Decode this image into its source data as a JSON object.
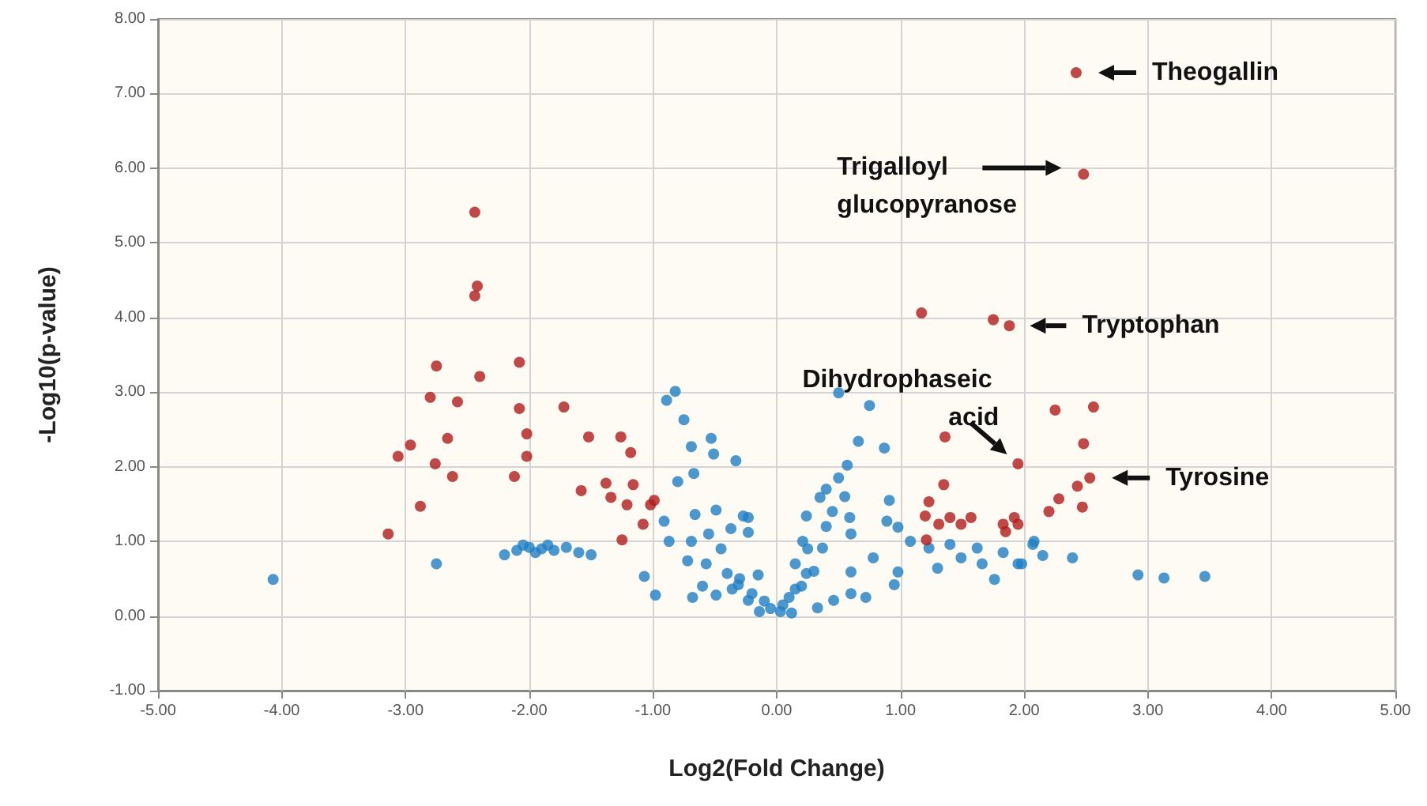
{
  "chart_data": {
    "type": "scatter",
    "xlabel": "Log2(Fold Change)",
    "ylabel": "-Log10(p-value)",
    "marker": "circle",
    "grid": true,
    "xlim": [
      -5,
      5
    ],
    "ylim": [
      -1,
      8
    ],
    "xticks": [
      {
        "value": -5,
        "label": "-5.00"
      },
      {
        "value": -4,
        "label": "-4.00"
      },
      {
        "value": -3,
        "label": "-3.00"
      },
      {
        "value": -2,
        "label": "-2.00"
      },
      {
        "value": -1,
        "label": "-1.00"
      },
      {
        "value": 0,
        "label": "0.00"
      },
      {
        "value": 1,
        "label": "1.00"
      },
      {
        "value": 2,
        "label": "2.00"
      },
      {
        "value": 3,
        "label": "3.00"
      },
      {
        "value": 4,
        "label": "4.00"
      },
      {
        "value": 5,
        "label": "5.00"
      }
    ],
    "yticks": [
      {
        "value": -1,
        "label": "-1.00"
      },
      {
        "value": 0,
        "label": "0.00"
      },
      {
        "value": 1,
        "label": "1.00"
      },
      {
        "value": 2,
        "label": "2.00"
      },
      {
        "value": 3,
        "label": "3.00"
      },
      {
        "value": 4,
        "label": "4.00"
      },
      {
        "value": 5,
        "label": "5.00"
      },
      {
        "value": 6,
        "label": "6.00"
      },
      {
        "value": 7,
        "label": "7.00"
      },
      {
        "value": 8,
        "label": "8.00"
      }
    ],
    "series": [
      {
        "color": "#1f7fc4",
        "x": [
          -4.07,
          -2.75,
          -0.82,
          -0.89,
          -0.75,
          -0.53,
          -0.69,
          -0.51,
          -0.33,
          -0.67,
          -0.66,
          -0.49,
          -0.23,
          -0.37,
          -0.91,
          -0.87,
          -0.69,
          -0.72,
          -0.57,
          -1.07,
          -0.98,
          -0.68,
          -0.49,
          -0.31,
          -0.23,
          -0.4,
          0.5,
          0.75,
          0.66,
          0.87,
          0.57,
          0.5,
          0.4,
          0.35,
          0.91,
          0.24,
          0.59,
          0.89,
          0.98,
          0.6,
          0.21,
          0.37,
          1.08,
          0.78,
          0.6,
          0.98,
          0.95,
          0.24,
          0.15,
          0.03,
          0.46,
          0.72,
          -0.36,
          -0.14,
          0.12,
          0.33,
          -0.23,
          -0.27,
          1.23,
          1.3,
          1.4,
          1.49,
          1.62,
          1.66,
          1.76,
          1.83,
          1.95,
          2.07,
          2.08,
          2.15,
          1.98,
          2.39,
          2.92,
          3.13,
          3.46,
          -0.05,
          0.05,
          -0.1,
          0.1,
          -0.2,
          0.2,
          0.3,
          -0.3,
          0.15,
          0.25,
          -0.15,
          0.4,
          0.45,
          -0.45,
          -0.55,
          0.55,
          -0.8,
          -0.6,
          0.6,
          -2.2,
          -2.1,
          -2.0,
          -1.95,
          -1.9,
          -1.85,
          -1.8,
          -1.7,
          -1.6,
          -1.5,
          -2.05
        ],
        "values": [
          0.49,
          0.7,
          3.01,
          2.89,
          2.63,
          2.38,
          2.27,
          2.17,
          2.08,
          1.91,
          1.36,
          1.42,
          1.32,
          1.17,
          1.27,
          1.0,
          1.0,
          0.74,
          0.7,
          0.53,
          0.28,
          0.25,
          0.28,
          0.42,
          0.21,
          0.57,
          2.99,
          2.82,
          2.34,
          2.25,
          2.02,
          1.85,
          1.7,
          1.59,
          1.55,
          1.34,
          1.32,
          1.27,
          1.19,
          1.1,
          1.0,
          0.91,
          1.0,
          0.78,
          0.59,
          0.59,
          0.42,
          0.57,
          0.36,
          0.06,
          0.21,
          0.25,
          0.36,
          0.06,
          0.04,
          0.11,
          1.12,
          1.34,
          0.91,
          0.64,
          0.96,
          0.78,
          0.91,
          0.7,
          0.49,
          0.85,
          0.7,
          0.96,
          1.0,
          0.81,
          0.7,
          0.78,
          0.55,
          0.51,
          0.53,
          0.1,
          0.15,
          0.2,
          0.25,
          0.3,
          0.4,
          0.6,
          0.5,
          0.7,
          0.9,
          0.55,
          1.2,
          1.4,
          0.9,
          1.1,
          1.6,
          1.8,
          0.4,
          0.3,
          0.82,
          0.88,
          0.92,
          0.85,
          0.9,
          0.95,
          0.88,
          0.92,
          0.85,
          0.82,
          0.95
        ]
      },
      {
        "color": "#b01c1c",
        "x": [
          2.42,
          2.48,
          1.17,
          1.75,
          1.88,
          1.95,
          1.36,
          1.35,
          1.23,
          1.2,
          1.31,
          1.4,
          1.49,
          1.57,
          1.83,
          1.92,
          1.85,
          1.21,
          2.25,
          2.56,
          2.48,
          2.53,
          2.43,
          2.28,
          2.2,
          2.47,
          1.95,
          -2.44,
          -2.42,
          -2.44,
          -2.75,
          -2.8,
          -2.58,
          -2.66,
          -2.96,
          -3.06,
          -2.76,
          -2.62,
          -2.88,
          -3.14,
          -2.4,
          -2.08,
          -2.08,
          -1.72,
          -2.02,
          -1.52,
          -1.26,
          -1.18,
          -2.02,
          -2.12,
          -1.58,
          -1.38,
          -1.16,
          -1.34,
          -1.21,
          -0.99,
          -1.02,
          -1.08,
          -1.25
        ],
        "values": [
          7.28,
          5.92,
          4.06,
          3.97,
          3.89,
          2.04,
          2.4,
          1.76,
          1.53,
          1.34,
          1.23,
          1.32,
          1.23,
          1.32,
          1.23,
          1.32,
          1.13,
          1.02,
          2.76,
          2.8,
          2.31,
          1.85,
          1.74,
          1.57,
          1.4,
          1.46,
          1.23,
          5.41,
          4.42,
          4.29,
          3.35,
          2.93,
          2.87,
          2.38,
          2.29,
          2.14,
          2.04,
          1.87,
          1.47,
          1.1,
          3.21,
          3.4,
          2.78,
          2.8,
          2.44,
          2.4,
          2.4,
          2.19,
          2.14,
          1.87,
          1.68,
          1.78,
          1.76,
          1.59,
          1.49,
          1.55,
          1.49,
          1.23,
          1.02
        ]
      }
    ],
    "annotations": [
      {
        "text": "Theogallin",
        "x": 2.42,
        "y": 7.28
      },
      {
        "text": "Trigalloyl glucopyranose",
        "x": 2.48,
        "y": 5.92
      },
      {
        "text": "Dihydrophaseic acid",
        "x": 1.95,
        "y": 2.04
      },
      {
        "text": "Tryptophan",
        "x": 1.88,
        "y": 3.89
      },
      {
        "text": "Tyrosine",
        "x": 2.53,
        "y": 1.85
      }
    ]
  }
}
